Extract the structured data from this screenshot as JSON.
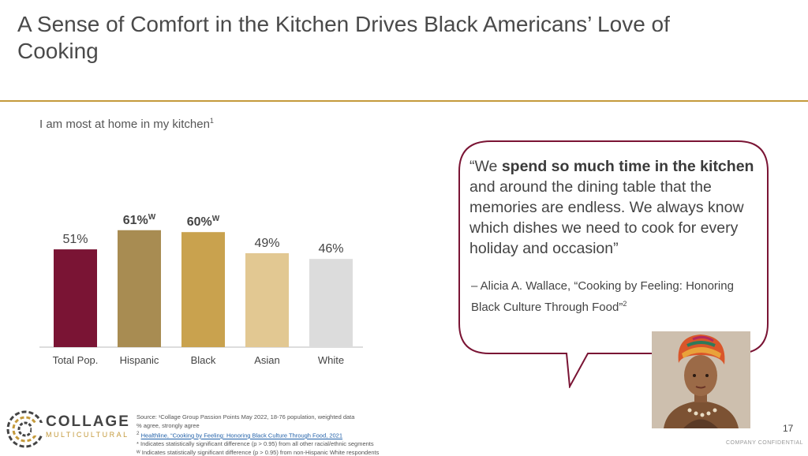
{
  "slide": {
    "title": "A Sense of Comfort in the Kitchen Drives Black Americans’ Love of Cooking",
    "page_number": "17",
    "confidential": "COMPANY CONFIDENTIAL"
  },
  "chart_data": {
    "type": "bar",
    "title": "I am most at home in my kitchen",
    "title_sup": "1",
    "categories": [
      "Total Pop.",
      "Hispanic",
      "Black",
      "Asian",
      "White"
    ],
    "values": [
      51,
      61,
      60,
      49,
      46
    ],
    "labels": [
      "51%",
      "61%",
      "60%",
      "49%",
      "46%"
    ],
    "label_sup": [
      "",
      "W",
      "W",
      "",
      ""
    ],
    "label_bold": [
      false,
      true,
      true,
      false,
      false
    ],
    "colors": [
      "#7a1434",
      "#a88c52",
      "#c9a24e",
      "#e2c892",
      "#dcdcdc"
    ],
    "ylim": [
      0,
      70
    ],
    "grid": false
  },
  "quote": {
    "open": "“We ",
    "bold": "spend so much time in the kitchen",
    "rest": " and around the dining table that the memories are endless. We always know which dishes we need to cook for every holiday and occasion”",
    "attribution": "– Alicia A. Wallace, “Cooking by Feeling: Honoring Black Culture Through Food”",
    "attribution_sup": "2"
  },
  "colors": {
    "accent_gold": "#c49a3c",
    "bubble_border": "#7a1434"
  },
  "logo": {
    "name": "COLLAGE",
    "sub": "MULTICULTURAL"
  },
  "source": {
    "line1": "Source: ¹Collage Group Passion Points May 2022, 18-76 population, weighted data",
    "line2": "% agree, strongly agree",
    "line3_sup": "2",
    "line3_link": "Healthline, “Cooking by Feeling: Honoring Black Culture Through Food, 2021",
    "line4": "* Indicates statistically significant difference (p > 0.95) from all other racial/ethnic segments",
    "line5": "ᵂ Indicates statistically significant difference (p > 0.95) from non-Hispanic White respondents"
  }
}
